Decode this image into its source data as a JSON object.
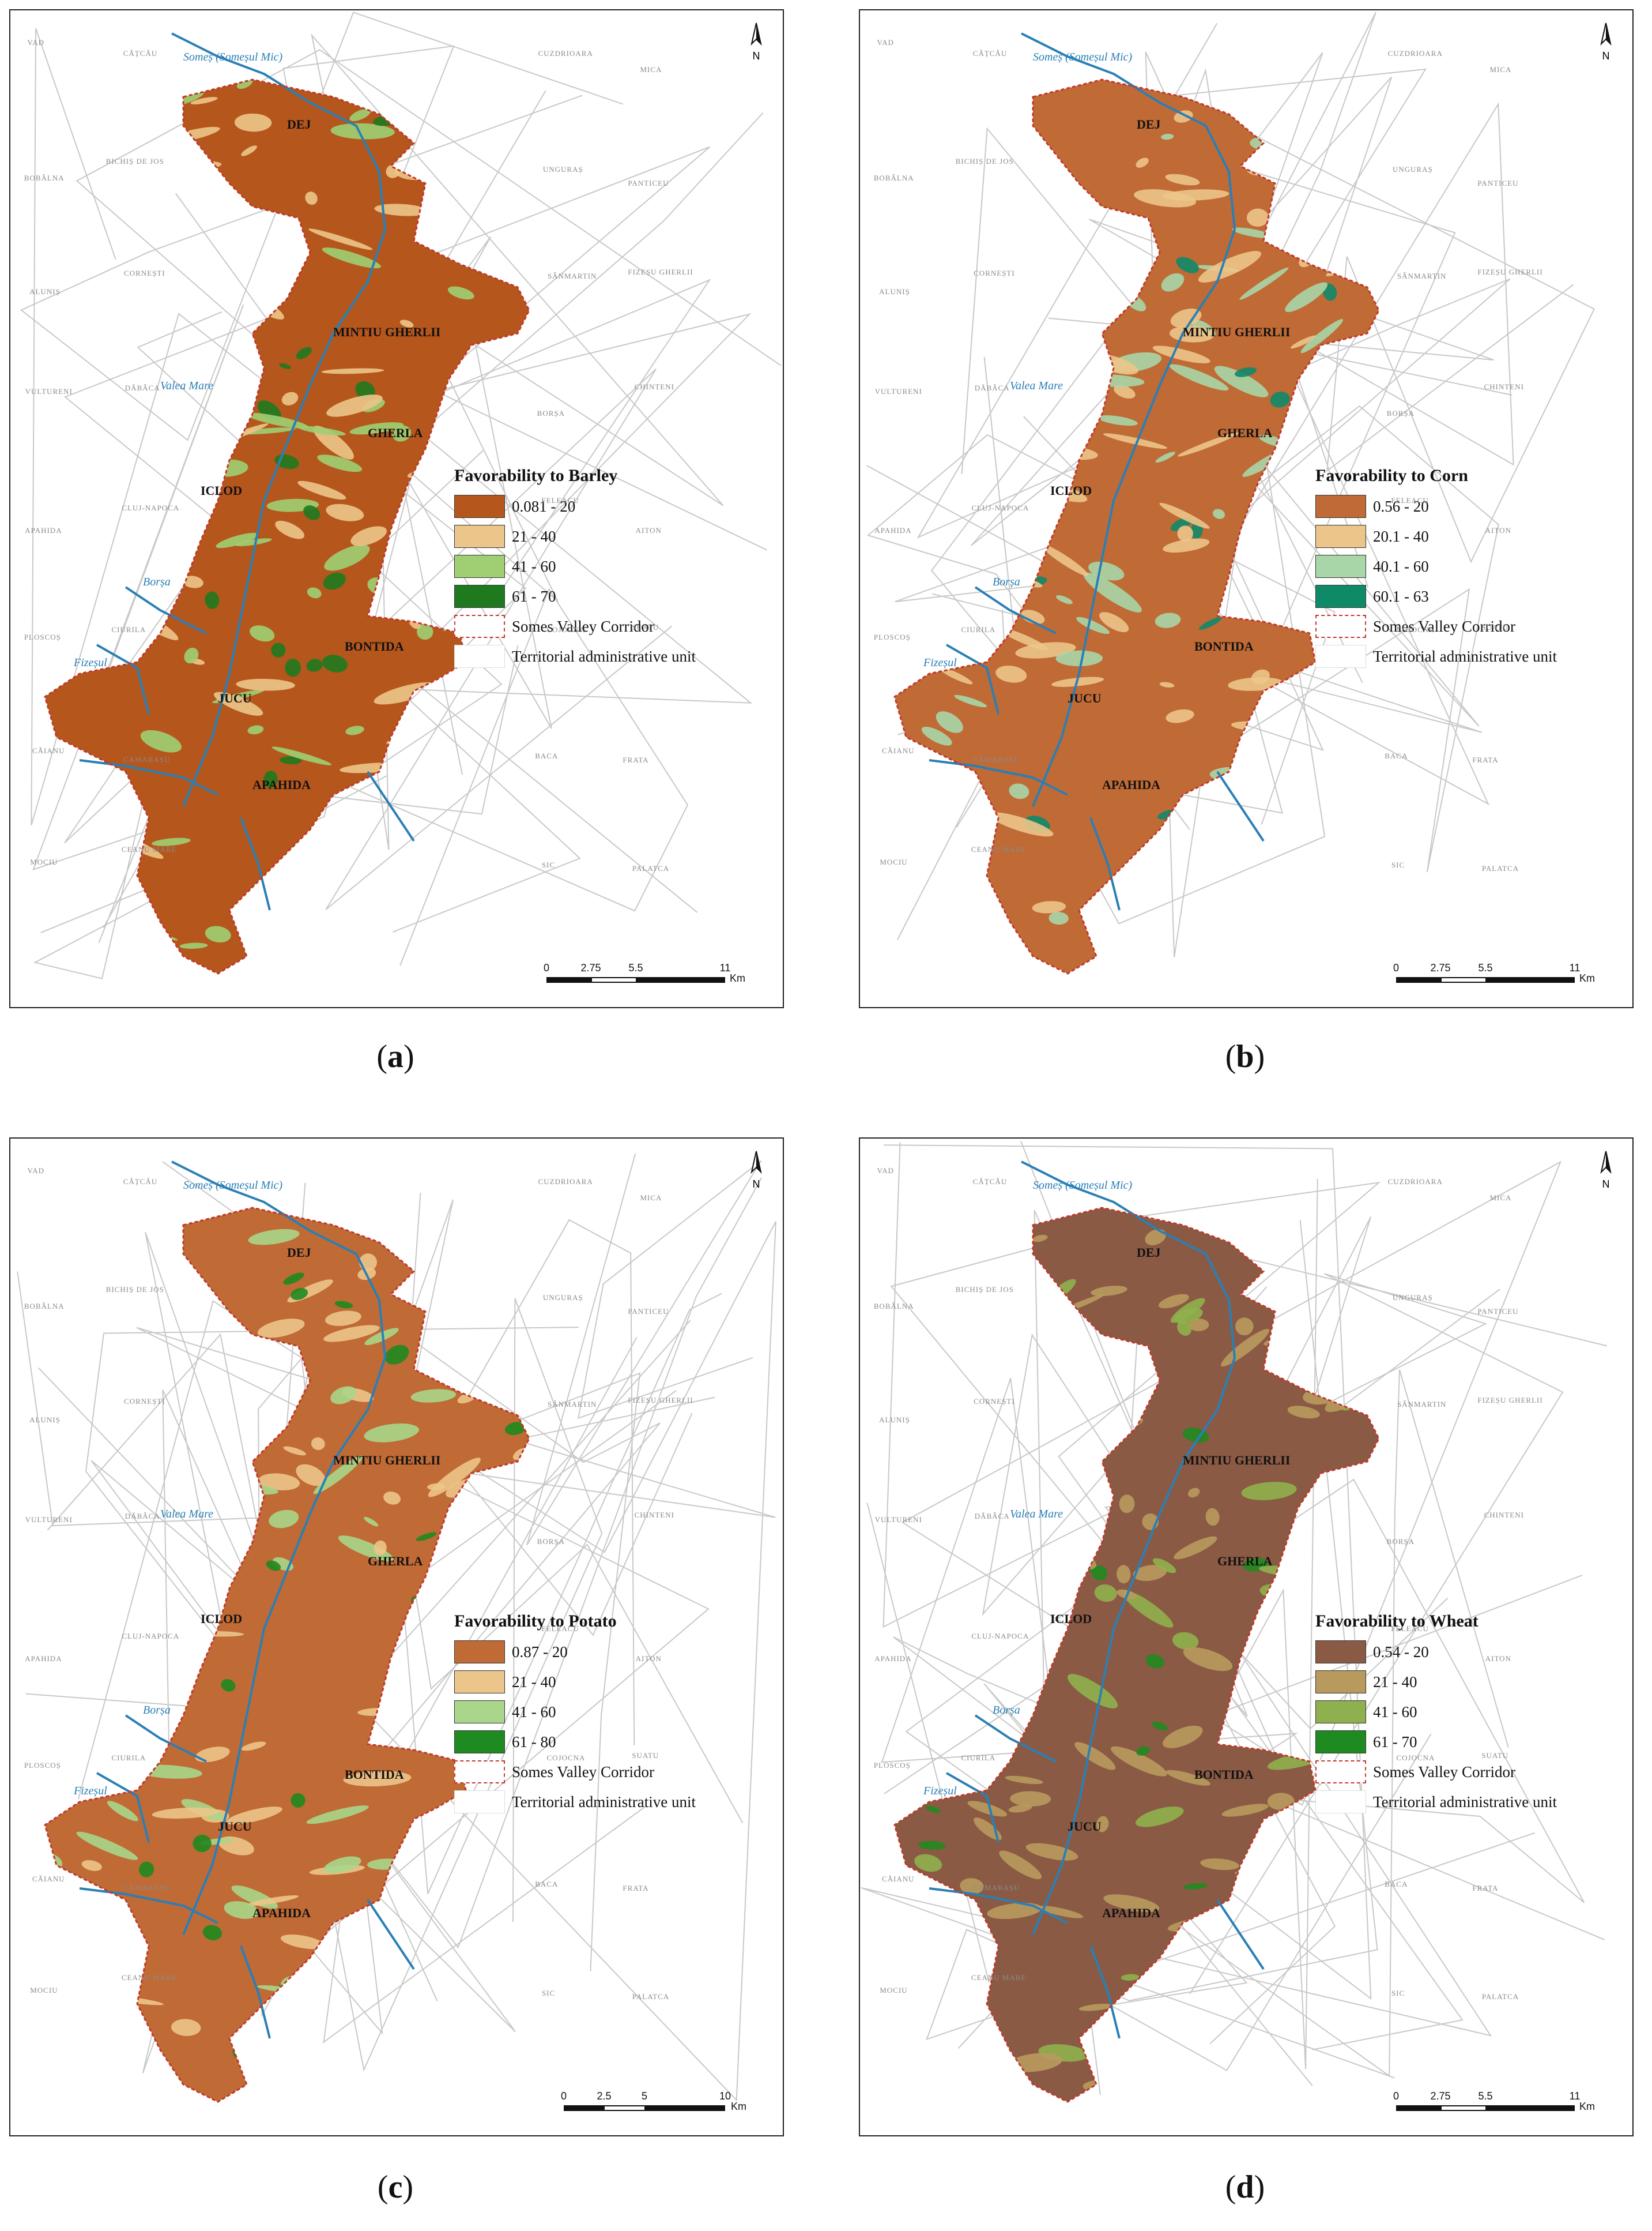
{
  "colors": {
    "river": "#2a7fb5",
    "corridor_outline": "#c0392b",
    "admin_line": "#c8c8c8"
  },
  "panels": [
    {
      "id": "a",
      "caption_letter": "a",
      "legend_title": "Favorability to Barley",
      "classes": [
        {
          "label": "0.081 - 20",
          "color": "#b5561c"
        },
        {
          "label": "21 - 40",
          "color": "#ecc58a"
        },
        {
          "label": "41 - 60",
          "color": "#9fcf72"
        },
        {
          "label": "61 - 70",
          "color": "#1f7a1f"
        }
      ],
      "corridor_label": "Somes Valley Corridor",
      "admin_label": "Territorial administrative unit",
      "scale": {
        "ticks": [
          "0",
          "2.75",
          "5.5",
          "11"
        ],
        "unit": "Km"
      },
      "north": "N"
    },
    {
      "id": "b",
      "caption_letter": "b",
      "legend_title": "Favorability to Corn",
      "classes": [
        {
          "label": "0.56 - 20",
          "color": "#c06a36"
        },
        {
          "label": "20.1 - 40",
          "color": "#ecc58a"
        },
        {
          "label": "40.1 - 60",
          "color": "#a9d6a8"
        },
        {
          "label": "60.1 - 63",
          "color": "#0f8a68"
        }
      ],
      "corridor_label": "Somes Valley Corridor",
      "admin_label": "Territorial administrative unit",
      "scale": {
        "ticks": [
          "0",
          "2.75",
          "5.5",
          "11"
        ],
        "unit": "Km"
      },
      "north": "N"
    },
    {
      "id": "c",
      "caption_letter": "c",
      "legend_title": "Favorability to Potato",
      "classes": [
        {
          "label": "0.87 - 20",
          "color": "#c06a36"
        },
        {
          "label": "21 - 40",
          "color": "#ecc58a"
        },
        {
          "label": "41 - 60",
          "color": "#a9d68a"
        },
        {
          "label": "61 - 80",
          "color": "#1f8a1f"
        }
      ],
      "corridor_label": "Somes Valley Corridor",
      "admin_label": "Territorial administrative unit",
      "scale": {
        "ticks": [
          "0",
          "2.5",
          "5",
          "10"
        ],
        "unit": "Km"
      },
      "north": "N"
    },
    {
      "id": "d",
      "caption_letter": "d",
      "legend_title": "Favorability to Wheat",
      "classes": [
        {
          "label": "0.54 - 20",
          "color": "#8a5a44"
        },
        {
          "label": "21 - 40",
          "color": "#b89a5e"
        },
        {
          "label": "41 - 60",
          "color": "#8fb04e"
        },
        {
          "label": "61 - 70",
          "color": "#1f8a1f"
        }
      ],
      "corridor_label": "Somes Valley Corridor",
      "admin_label": "Territorial administrative unit",
      "scale": {
        "ticks": [
          "0",
          "2.75",
          "5.5",
          "11"
        ],
        "unit": "Km"
      },
      "north": "N"
    }
  ],
  "towns": [
    "DEJ",
    "MINTIU GHERLII",
    "GHERLA",
    "ICLOD",
    "BONTIDA",
    "JUCU",
    "APAHIDA"
  ],
  "rivers": [
    "Someș (Someșul Mic)",
    "Valea Mare",
    "Borșa",
    "Fizeșul"
  ],
  "places": [
    "VAD",
    "CĂȚCĂU",
    "CUZDRIOARA",
    "MICA",
    "BOBÂLNA",
    "BICHIȘ DE JOS",
    "UNGURAȘ",
    "PANTICEU",
    "ALUNIȘ",
    "CORNEȘTI",
    "SÂNMARTIN",
    "FIZEȘU GHERLII",
    "VULTURENI",
    "DĂBÂCA",
    "BORȘA",
    "CHINTENI",
    "APAHIDA",
    "CLUJ-NAPOCA",
    "FELEACU",
    "AITON",
    "PLOSCOȘ",
    "CIURILA",
    "COJOCNA",
    "SUATU",
    "CĂIANU",
    "CAMARAȘU",
    "BACA",
    "FRATA",
    "MOCIU",
    "CEANU MARE",
    "SIC",
    "PALATCA"
  ]
}
